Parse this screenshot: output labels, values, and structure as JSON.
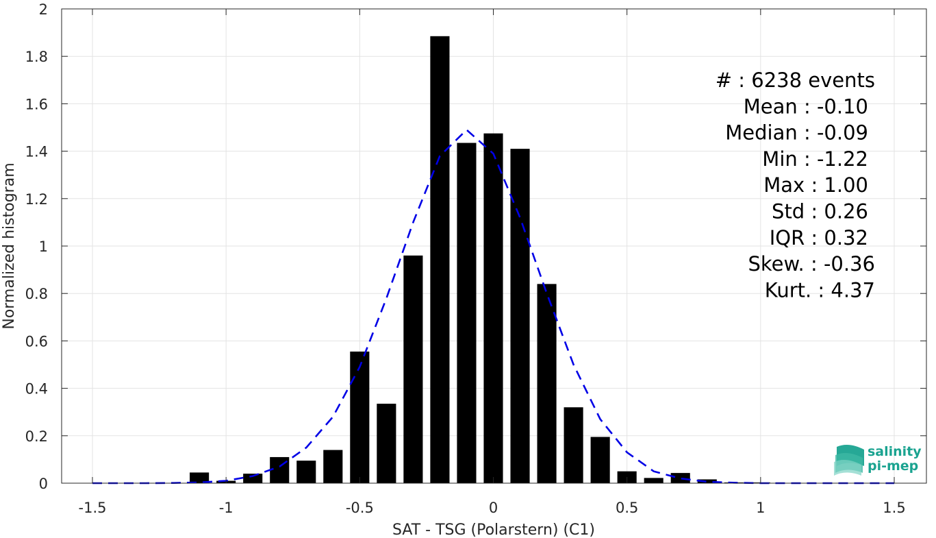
{
  "chart_data": {
    "type": "bar",
    "xlabel": "SAT - TSG (Polarstern) (C1)",
    "ylabel": "Normalized histogram",
    "xlim": [
      -1.5,
      1.5
    ],
    "ylim": [
      0,
      2
    ],
    "grid": true,
    "xticks": [
      -1.5,
      -1,
      -0.5,
      0,
      0.5,
      1,
      1.5
    ],
    "xtick_labels": [
      "-1.5",
      "-1",
      "-0.5",
      "0",
      "0.5",
      "1",
      "1.5"
    ],
    "yticks": [
      0,
      0.2,
      0.4,
      0.6,
      0.8,
      1,
      1.2,
      1.4,
      1.6,
      1.8,
      2
    ],
    "ytick_labels": [
      "0",
      "0.2",
      "0.4",
      "0.6",
      "0.8",
      "1",
      "1.2",
      "1.4",
      "1.6",
      "1.8",
      "2"
    ],
    "bar_color": "#000000",
    "bins": {
      "x": [
        -1.1,
        -1.0,
        -0.9,
        -0.8,
        -0.7,
        -0.6,
        -0.5,
        -0.4,
        -0.3,
        -0.2,
        -0.1,
        0.0,
        0.1,
        0.2,
        0.3,
        0.4,
        0.5,
        0.6,
        0.7,
        0.8,
        0.9,
        1.0
      ],
      "values": [
        0.045,
        0.01,
        0.04,
        0.11,
        0.095,
        0.14,
        0.555,
        0.335,
        0.96,
        1.885,
        1.435,
        1.475,
        1.41,
        0.84,
        0.32,
        0.195,
        0.05,
        0.022,
        0.043,
        0.016,
        0.003,
        0.003
      ]
    },
    "fit_curve": {
      "style": "dashed",
      "color": "#0000e6",
      "x": [
        -1.5,
        -1.4,
        -1.3,
        -1.2,
        -1.1,
        -1.0,
        -0.9,
        -0.8,
        -0.7,
        -0.6,
        -0.5,
        -0.4,
        -0.3,
        -0.2,
        -0.1,
        0.0,
        0.1,
        0.2,
        0.3,
        0.4,
        0.5,
        0.6,
        0.7,
        0.8,
        0.9,
        1.0,
        1.1,
        1.2,
        1.3,
        1.4,
        1.5
      ],
      "y": [
        0.0,
        0.0,
        0.0,
        0.001,
        0.003,
        0.01,
        0.03,
        0.07,
        0.15,
        0.28,
        0.49,
        0.78,
        1.1,
        1.38,
        1.49,
        1.39,
        1.12,
        0.8,
        0.5,
        0.27,
        0.13,
        0.05,
        0.02,
        0.006,
        0.002,
        0.0,
        0.0,
        0.0,
        0.0,
        0.0,
        0.0
      ]
    },
    "annotations": [
      "#  : 6238 events",
      "Mean : -0.10",
      "Median : -0.09",
      "Min : -1.22",
      "Max : 1.00",
      "Std : 0.26",
      "IQR : 0.32",
      "Skew. : -0.36",
      "Kurt. : 4.37"
    ]
  },
  "logo": {
    "line1": "salinity",
    "line2": "pi-mep",
    "color": "#1aa390"
  }
}
